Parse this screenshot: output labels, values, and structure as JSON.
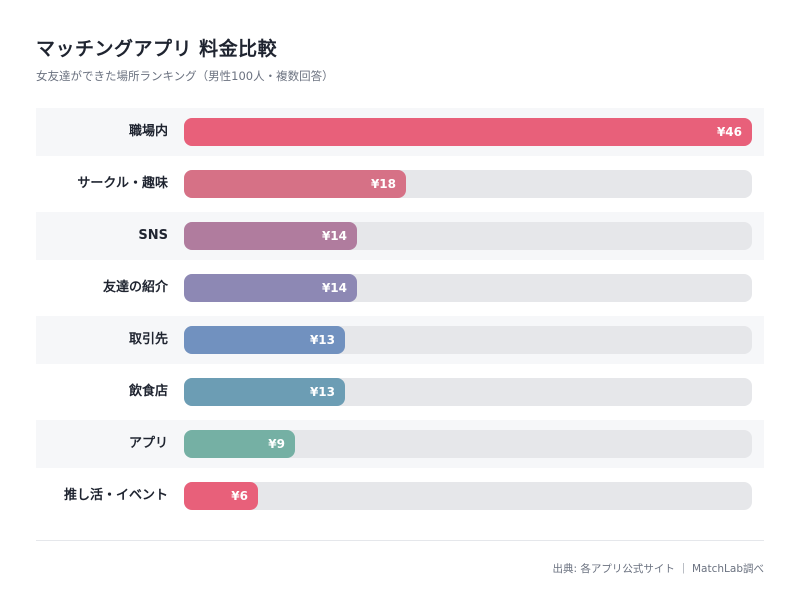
{
  "header": {
    "title": "マッチングアプリ 料金比較",
    "subtitle": "女友達ができた場所ランキング（男性100人・複数回答）"
  },
  "footer": {
    "source": "出典: 各アプリ公式サイト ｜ MatchLab調べ"
  },
  "colors": {
    "track": "#e6e7ea",
    "row_shade": "#f6f7f9",
    "text": "#1f2430"
  },
  "chart_data": {
    "type": "bar",
    "orientation": "horizontal",
    "title": "マッチングアプリ 料金比較",
    "subtitle": "女友達ができた場所ランキング（男性100人・複数回答）",
    "categories": [
      "職場内",
      "サークル・趣味",
      "SNS",
      "友達の紹介",
      "取引先",
      "飲食店",
      "アプリ",
      "推し活・イベント"
    ],
    "values": [
      46,
      18,
      14,
      14,
      13,
      13,
      9,
      6
    ],
    "value_labels": [
      "¥46",
      "¥18",
      "¥14",
      "¥14",
      "¥13",
      "¥13",
      "¥9",
      "¥6"
    ],
    "bar_colors": [
      "#e8607a",
      "#d67186",
      "#b07c9e",
      "#8d88b4",
      "#7191bf",
      "#6c9db4",
      "#75b0a4",
      "#e8607a"
    ],
    "xlim": [
      0,
      46
    ],
    "grid": false,
    "legend": "none"
  }
}
